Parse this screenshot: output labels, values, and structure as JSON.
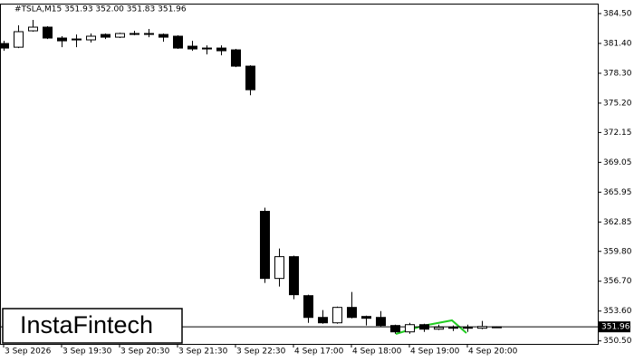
{
  "chart_data": {
    "type": "candlestick",
    "title": "#TSLA,M15  351.93 352.00 351.83 351.96",
    "watermark": "InstaFintech",
    "categories": [
      "3 Sep 2026",
      null,
      null,
      null,
      "3 Sep 19:30",
      null,
      null,
      null,
      "3 Sep 20:30",
      null,
      null,
      null,
      "3 Sep 21:30",
      null,
      null,
      null,
      "3 Sep 22:30",
      null,
      null,
      null,
      "4 Sep 17:00",
      null,
      null,
      null,
      "4 Sep 18:00",
      null,
      null,
      null,
      "4 Sep 19:00",
      null,
      null,
      null,
      "4 Sep 20:00",
      null,
      null
    ],
    "open": [
      381.39,
      381.01,
      382.71,
      383.09,
      381.96,
      381.86,
      381.77,
      382.33,
      382.05,
      382.43,
      382.38,
      382.33,
      382.15,
      381.11,
      380.92,
      380.92,
      380.73,
      379.04,
      363.96,
      356.99,
      359.25,
      355.2,
      352.94,
      352.38,
      353.98,
      353.04,
      352.94,
      352.1,
      351.44,
      352.19,
      351.72,
      351.91,
      351.86,
      351.82,
      351.93
    ],
    "high": [
      381.67,
      383.28,
      383.84,
      383.18,
      382.15,
      382.33,
      382.43,
      382.43,
      382.52,
      382.71,
      382.9,
      382.43,
      382.24,
      381.67,
      381.2,
      381.2,
      380.83,
      379.13,
      364.34,
      360.1,
      359.35,
      355.3,
      353.7,
      354.07,
      355.58,
      353.13,
      353.6,
      352.19,
      352.38,
      352.28,
      352.19,
      352.1,
      352.19,
      352.57,
      352.0
    ],
    "low": [
      380.64,
      380.92,
      382.62,
      381.86,
      381.01,
      381.01,
      381.49,
      381.86,
      381.96,
      382.24,
      382.05,
      381.58,
      380.83,
      380.64,
      380.26,
      380.17,
      378.94,
      376.02,
      356.52,
      356.15,
      354.83,
      352.38,
      352.28,
      352.28,
      352.85,
      352.1,
      352.0,
      351.25,
      351.25,
      351.44,
      351.63,
      351.53,
      351.44,
      351.72,
      351.83
    ],
    "close": [
      380.92,
      382.62,
      383.09,
      381.96,
      381.67,
      381.82,
      382.15,
      382.05,
      382.43,
      382.38,
      382.43,
      382.05,
      380.92,
      380.83,
      380.87,
      380.64,
      379.04,
      376.59,
      356.99,
      359.25,
      355.3,
      352.94,
      352.38,
      353.98,
      352.94,
      352.85,
      352.1,
      351.44,
      352.19,
      351.72,
      351.91,
      351.82,
      351.91,
      352.0,
      351.96
    ],
    "up_color": "#ffffff",
    "down_color": "#000000",
    "last_price": 351.96,
    "ylim": [
      350.19,
      385.44
    ],
    "yticks": [
      {
        "value": 384.5,
        "label": "384.50"
      },
      {
        "value": 381.4,
        "label": "381.40"
      },
      {
        "value": 378.3,
        "label": "378.30"
      },
      {
        "value": 375.2,
        "label": "375.20"
      },
      372.15,
      369.05,
      365.95,
      362.85,
      {
        "value": 359.8,
        "label": "359.80"
      },
      {
        "value": 356.7,
        "label": "356.70"
      },
      {
        "value": 353.6,
        "label": "353.60"
      },
      {
        "value": 350.5,
        "label": "350.50"
      }
    ]
  }
}
